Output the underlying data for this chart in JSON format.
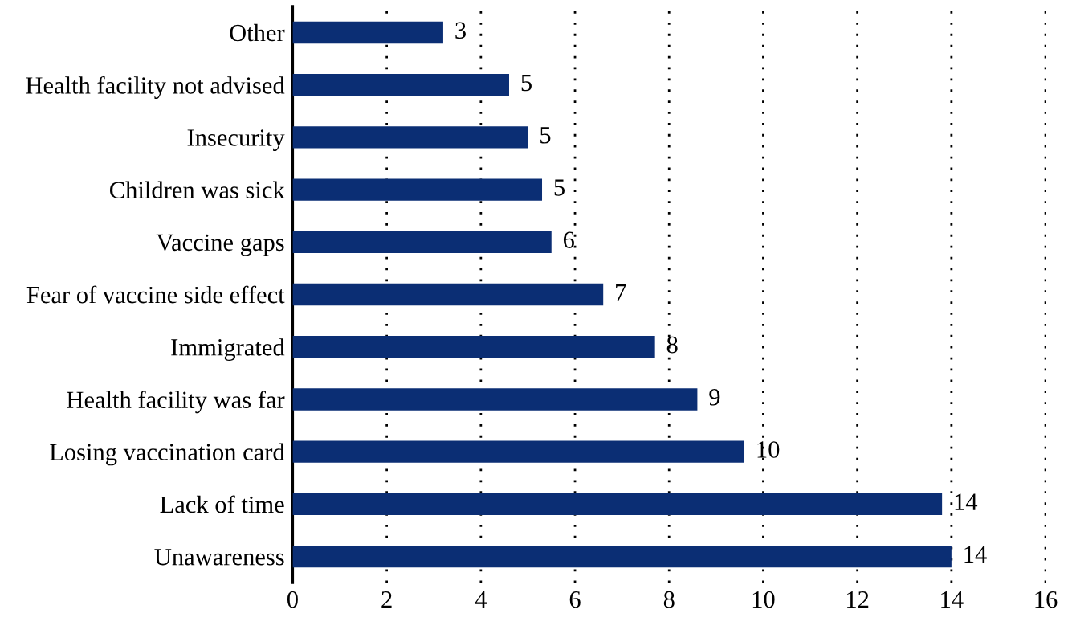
{
  "chart_data": {
    "type": "bar",
    "orientation": "horizontal",
    "categories": [
      "Other",
      "Health facility not advised",
      "Insecurity",
      "Children was sick",
      "Vaccine gaps",
      "Fear of vaccine side effect",
      "Immigrated",
      "Health facility was far",
      "Losing vaccination card",
      "Lack of time",
      "Unawareness"
    ],
    "values": [
      3.2,
      4.6,
      5.0,
      5.3,
      5.5,
      6.6,
      7.7,
      8.6,
      9.6,
      13.8,
      14.0
    ],
    "value_labels": [
      "3",
      "5",
      "5",
      "5",
      "6",
      "7",
      "8",
      "9",
      "10",
      "14",
      "14"
    ],
    "color": "#0b2e74",
    "xlim": [
      0,
      16
    ],
    "xticks": [
      0,
      2,
      4,
      6,
      8,
      10,
      12,
      14,
      16
    ],
    "grid": "x",
    "legend": false
  }
}
